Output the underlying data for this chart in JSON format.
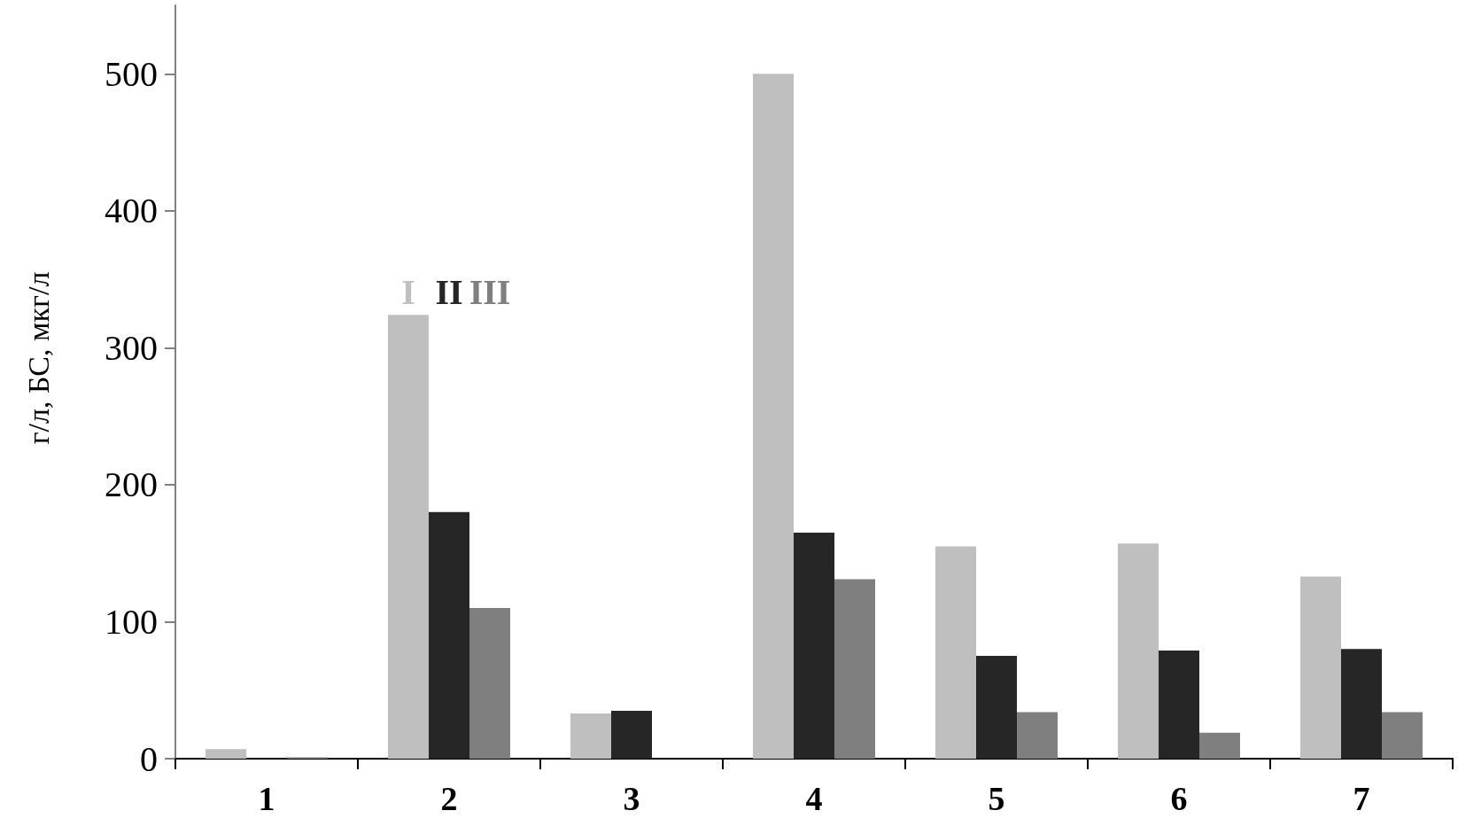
{
  "chart_data": {
    "type": "bar",
    "ylabel": "г/л, БС, мкг/л",
    "categories": [
      "1",
      "2",
      "3",
      "4",
      "5",
      "6",
      "7"
    ],
    "series": [
      {
        "name": "I",
        "color": "#bfbfbf",
        "values": [
          7,
          324,
          33,
          500,
          155,
          157,
          133
        ]
      },
      {
        "name": "II",
        "color": "#262626",
        "values": [
          null,
          180,
          35,
          165,
          75,
          79,
          80
        ]
      },
      {
        "name": "III",
        "color": "#7f7f7f",
        "values": [
          1,
          110,
          null,
          131,
          34,
          19,
          34
        ]
      }
    ],
    "ylim": [
      0,
      550
    ],
    "yticks": [
      0,
      100,
      200,
      300,
      400,
      500
    ],
    "grid": false,
    "legend": false
  }
}
